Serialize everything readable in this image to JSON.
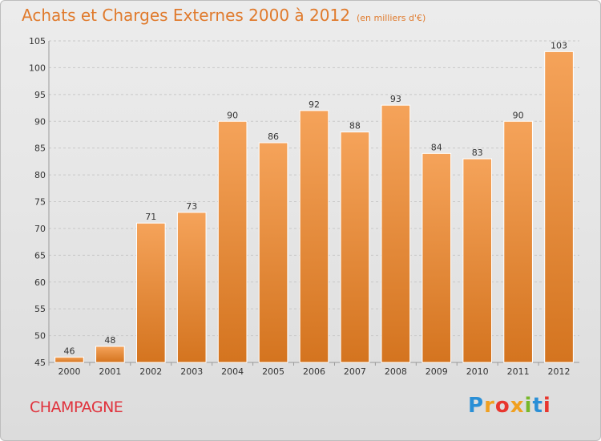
{
  "title": "Achats et Charges Externes 2000 à 2012",
  "subtitle": "(en milliers d'€)",
  "commune": "CHAMPAGNE",
  "logo": {
    "letters": [
      "P",
      "r",
      "o",
      "x",
      "i",
      "t",
      "i"
    ],
    "colors": [
      "#2a8fd6",
      "#f0a020",
      "#e8362e",
      "#f0a020",
      "#78b82a",
      "#2a8fd6",
      "#e8362e"
    ]
  },
  "colors": {
    "bar_top": "#f5a35a",
    "bar_bottom": "#d4741f",
    "bar_border": "#ffffff",
    "title": "#e07a2c",
    "commune": "#e0323c"
  },
  "chart_data": {
    "type": "bar",
    "title": "Achats et Charges Externes 2000 à 2012",
    "subtitle": "(en milliers d'€)",
    "xlabel": "",
    "ylabel": "",
    "categories": [
      "2000",
      "2001",
      "2002",
      "2003",
      "2004",
      "2005",
      "2006",
      "2007",
      "2008",
      "2009",
      "2010",
      "2011",
      "2012"
    ],
    "values": [
      46,
      48,
      71,
      73,
      90,
      86,
      92,
      88,
      93,
      84,
      83,
      90,
      103
    ],
    "ylim": [
      45,
      105
    ],
    "yticks": [
      45,
      50,
      55,
      60,
      65,
      70,
      75,
      80,
      85,
      90,
      95,
      100,
      105
    ],
    "grid": true,
    "data_labels": true
  }
}
